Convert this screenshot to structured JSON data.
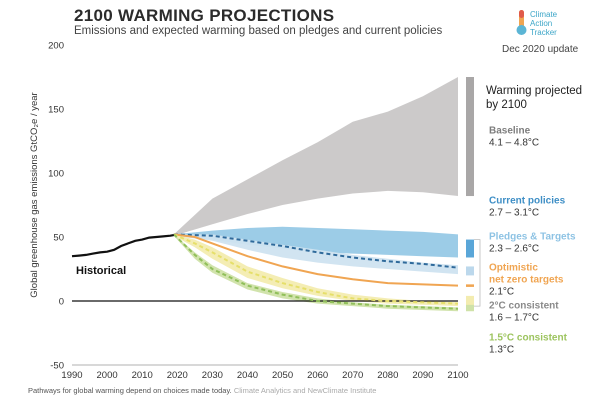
{
  "header": {
    "title": "2100 WARMING PROJECTIONS",
    "subtitle": "Emissions and expected warming based on pledges and current policies",
    "update": "Dec 2020 update",
    "logo_lines": [
      "Climate",
      "Action",
      "Tracker"
    ]
  },
  "footer": {
    "caption": "Pathways for global warming depend on choices made today.",
    "source": "Climate Analytics and NewClimate Institute"
  },
  "chart_data": {
    "type": "area",
    "ylabel": "Global greenhouse gas emissions GtCO₂e / year",
    "xlim": [
      1990,
      2100
    ],
    "ylim": [
      -50,
      200
    ],
    "x_ticks": [
      1990,
      2000,
      2010,
      2020,
      2030,
      2040,
      2050,
      2060,
      2070,
      2080,
      2090,
      2100
    ],
    "y_ticks": [
      -50,
      0,
      50,
      100,
      150,
      200
    ],
    "historical": {
      "name": "Historical",
      "x": [
        1990,
        1992,
        1994,
        1996,
        1998,
        2000,
        2002,
        2004,
        2006,
        2008,
        2010,
        2012,
        2014,
        2016,
        2018,
        2019
      ],
      "y": [
        35,
        35.5,
        36,
        37,
        38,
        38.5,
        40,
        43,
        45,
        47,
        48,
        49.5,
        50,
        50.5,
        51,
        51.5
      ]
    },
    "bands": [
      {
        "name": "Baseline",
        "color": "#c9c7c7",
        "x": [
          2019,
          2030,
          2040,
          2050,
          2060,
          2070,
          2080,
          2090,
          2100
        ],
        "upper": [
          52,
          80,
          95,
          110,
          124,
          140,
          148,
          160,
          175
        ],
        "lower": [
          51,
          60,
          68,
          75,
          80,
          84,
          86,
          85,
          82
        ]
      },
      {
        "name": "Current policies",
        "color": "#97c9e6",
        "x": [
          2019,
          2030,
          2040,
          2050,
          2060,
          2070,
          2080,
          2090,
          2100
        ],
        "upper": [
          52,
          55,
          57,
          58,
          57,
          56,
          55,
          54,
          52
        ],
        "lower": [
          51,
          48,
          44,
          41,
          38,
          37,
          36,
          35,
          34
        ]
      },
      {
        "name": "Pledges & Targets",
        "color": "#cfe3f0",
        "x": [
          2019,
          2030,
          2040,
          2050,
          2060,
          2070,
          2080,
          2090,
          2100
        ],
        "upper": [
          52,
          52,
          48,
          44,
          40,
          36,
          33,
          30,
          28
        ],
        "lower": [
          51,
          47,
          40,
          34,
          30,
          27,
          25,
          23,
          21
        ]
      },
      {
        "name": "2°C consistent",
        "color": "#f3ecb0",
        "x": [
          2019,
          2025,
          2030,
          2040,
          2050,
          2060,
          2070,
          2080,
          2090,
          2100
        ],
        "upper": [
          52,
          48,
          42,
          27,
          18,
          10,
          5,
          2,
          0,
          -1
        ],
        "lower": [
          51,
          42,
          33,
          18,
          10,
          4,
          0,
          -2,
          -3,
          -4
        ]
      },
      {
        "name": "1.5°C consistent",
        "color": "#cfe2a8",
        "x": [
          2019,
          2025,
          2030,
          2040,
          2050,
          2060,
          2070,
          2080,
          2090,
          2100
        ],
        "upper": [
          52,
          38,
          28,
          14,
          7,
          2,
          -1,
          -3,
          -4,
          -5
        ],
        "lower": [
          51,
          33,
          22,
          9,
          2,
          -2,
          -4,
          -6,
          -7,
          -8
        ]
      }
    ],
    "lines": [
      {
        "name": "Pledges & Targets",
        "color": "#2f6a9b",
        "dashed": true,
        "x": [
          2019,
          2030,
          2040,
          2050,
          2060,
          2070,
          2080,
          2090,
          2100
        ],
        "y": [
          52,
          51,
          47,
          43,
          38,
          34,
          31,
          29,
          26
        ]
      },
      {
        "name": "Optimistic net zero targets",
        "color": "#f0a552",
        "dashed": false,
        "x": [
          2019,
          2025,
          2030,
          2040,
          2050,
          2060,
          2070,
          2080,
          2090,
          2100
        ],
        "y": [
          52,
          50,
          45,
          35,
          27,
          21,
          17,
          14,
          13,
          12
        ]
      },
      {
        "name": "2°C consistent",
        "color": "#e6df6a",
        "dashed": true,
        "x": [
          2019,
          2025,
          2030,
          2040,
          2050,
          2060,
          2070,
          2080,
          2090,
          2100
        ],
        "y": [
          52,
          45,
          38,
          23,
          14,
          7,
          2,
          0,
          -1,
          -2
        ]
      },
      {
        "name": "1.5°C consistent",
        "color": "#90bf5a",
        "dashed": true,
        "x": [
          2019,
          2025,
          2030,
          2040,
          2050,
          2060,
          2070,
          2080,
          2090,
          2100
        ],
        "y": [
          52,
          36,
          25,
          12,
          5,
          0,
          -2,
          -4,
          -5,
          -6
        ]
      }
    ],
    "range_bars": [
      {
        "name": "Baseline",
        "color": "#a9a7a7",
        "low": 82,
        "high": 175
      },
      {
        "name": "Current policies",
        "color": "#5aa6d8",
        "low": 34,
        "high": 48
      },
      {
        "name": "Pledges & Targets",
        "color": "#bcd8ec",
        "low": 20,
        "high": 27
      },
      {
        "name": "Optimistic",
        "color": "#f0a552",
        "low": 11,
        "high": 13
      },
      {
        "name": "2°C consistent",
        "color": "#f3ecb0",
        "low": -4,
        "high": 4
      },
      {
        "name": "1.5°C consistent",
        "color": "#cfe2a8",
        "low": -8,
        "high": -3
      }
    ],
    "annotations": {
      "historical_label": "Historical",
      "warming_heading": [
        "Warming projected",
        "by 2100"
      ],
      "scenarios": [
        {
          "name": "Baseline",
          "range": "4.1 – 4.8°C",
          "color": "#7d7d7d",
          "y_value": 131
        },
        {
          "name": "Current policies",
          "range": "2.7 – 3.1°C",
          "color": "#3f8fc6",
          "y_value": 76
        },
        {
          "name": "Pledges & Targets",
          "range": "2.3 – 2.6°C",
          "color": "#8ec3e4",
          "y_value": 48
        },
        {
          "name": "Optimistic",
          "name2": "net zero targets",
          "range": "2.1°C",
          "color": "#f0a552",
          "y_value": 24
        },
        {
          "name": "2°C consistent",
          "range": "1.6 – 1.7°C",
          "color": "#8a8a8a",
          "y_value": -6
        },
        {
          "name": "1.5°C consistent",
          "range": "1.3°C",
          "color": "#9dc45f",
          "y_value": -31
        }
      ]
    },
    "grid": false
  }
}
